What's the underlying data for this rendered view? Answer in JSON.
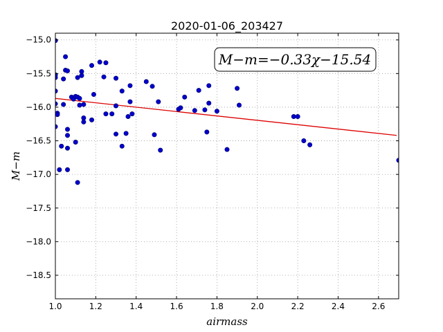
{
  "chart_data": {
    "type": "scatter",
    "title": "2020-01-06_203427",
    "xlabel": "airmass",
    "ylabel": "M−m",
    "xlim": [
      1.0,
      2.7
    ],
    "ylim": [
      -18.85,
      -14.9
    ],
    "grid": true,
    "x_ticks": [
      1.0,
      1.2,
      1.4,
      1.6,
      1.8,
      2.0,
      2.2,
      2.4,
      2.6
    ],
    "x_tick_labels": [
      "1.0",
      "1.2",
      "1.4",
      "1.6",
      "1.8",
      "2.0",
      "2.2",
      "2.4",
      "2.6"
    ],
    "y_ticks": [
      -15.0,
      -15.5,
      -16.0,
      -16.5,
      -17.0,
      -17.5,
      -18.0,
      -18.5
    ],
    "y_tick_labels": [
      "−15.0",
      "−15.5",
      "−16.0",
      "−16.5",
      "−17.0",
      "−17.5",
      "−18.0",
      "−18.5"
    ],
    "annotation": "M−m=−0.33χ−15.54",
    "series": [
      {
        "kind": "scatter",
        "color": "#0000cc",
        "points": [
          [
            1.0,
            -15.01
          ],
          [
            1.0,
            -15.52
          ],
          [
            1.0,
            -15.56
          ],
          [
            1.0,
            -15.76
          ],
          [
            1.0,
            -15.95
          ],
          [
            1.0,
            -16.29
          ],
          [
            1.01,
            -16.09
          ],
          [
            1.01,
            -16.11
          ],
          [
            1.02,
            -16.93
          ],
          [
            1.03,
            -16.58
          ],
          [
            1.04,
            -15.58
          ],
          [
            1.04,
            -15.96
          ],
          [
            1.05,
            -15.25
          ],
          [
            1.05,
            -15.45
          ],
          [
            1.06,
            -15.46
          ],
          [
            1.06,
            -16.33
          ],
          [
            1.06,
            -16.42
          ],
          [
            1.06,
            -16.61
          ],
          [
            1.06,
            -16.93
          ],
          [
            1.08,
            -15.85
          ],
          [
            1.09,
            -15.88
          ],
          [
            1.1,
            -16.52
          ],
          [
            1.1,
            -15.84
          ],
          [
            1.11,
            -15.56
          ],
          [
            1.11,
            -15.85
          ],
          [
            1.11,
            -17.12
          ],
          [
            1.12,
            -15.87
          ],
          [
            1.12,
            -15.97
          ],
          [
            1.13,
            -15.47
          ],
          [
            1.13,
            -15.53
          ],
          [
            1.14,
            -15.96
          ],
          [
            1.14,
            -16.16
          ],
          [
            1.14,
            -16.22
          ],
          [
            1.18,
            -15.38
          ],
          [
            1.18,
            -16.19
          ],
          [
            1.19,
            -15.81
          ],
          [
            1.22,
            -15.33
          ],
          [
            1.24,
            -15.55
          ],
          [
            1.25,
            -15.34
          ],
          [
            1.25,
            -16.1
          ],
          [
            1.28,
            -16.1
          ],
          [
            1.3,
            -15.57
          ],
          [
            1.3,
            -15.98
          ],
          [
            1.3,
            -16.4
          ],
          [
            1.33,
            -15.76
          ],
          [
            1.33,
            -16.58
          ],
          [
            1.35,
            -16.39
          ],
          [
            1.36,
            -16.14
          ],
          [
            1.37,
            -15.68
          ],
          [
            1.37,
            -15.92
          ],
          [
            1.38,
            -16.1
          ],
          [
            1.45,
            -15.62
          ],
          [
            1.48,
            -15.69
          ],
          [
            1.49,
            -16.41
          ],
          [
            1.51,
            -15.92
          ],
          [
            1.52,
            -16.64
          ],
          [
            1.61,
            -16.03
          ],
          [
            1.62,
            -16.01
          ],
          [
            1.64,
            -15.85
          ],
          [
            1.69,
            -16.05
          ],
          [
            1.71,
            -15.75
          ],
          [
            1.74,
            -16.04
          ],
          [
            1.75,
            -16.37
          ],
          [
            1.76,
            -15.68
          ],
          [
            1.76,
            -15.94
          ],
          [
            1.8,
            -16.06
          ],
          [
            1.85,
            -16.63
          ],
          [
            1.9,
            -15.72
          ],
          [
            1.91,
            -15.97
          ],
          [
            2.18,
            -16.14
          ],
          [
            2.2,
            -16.14
          ],
          [
            2.23,
            -16.5
          ],
          [
            2.26,
            -16.56
          ],
          [
            2.7,
            -16.79
          ]
        ]
      },
      {
        "kind": "line",
        "color": "#dd0000",
        "points": [
          [
            1.0,
            -15.87
          ],
          [
            2.69,
            -16.42
          ]
        ]
      }
    ]
  }
}
